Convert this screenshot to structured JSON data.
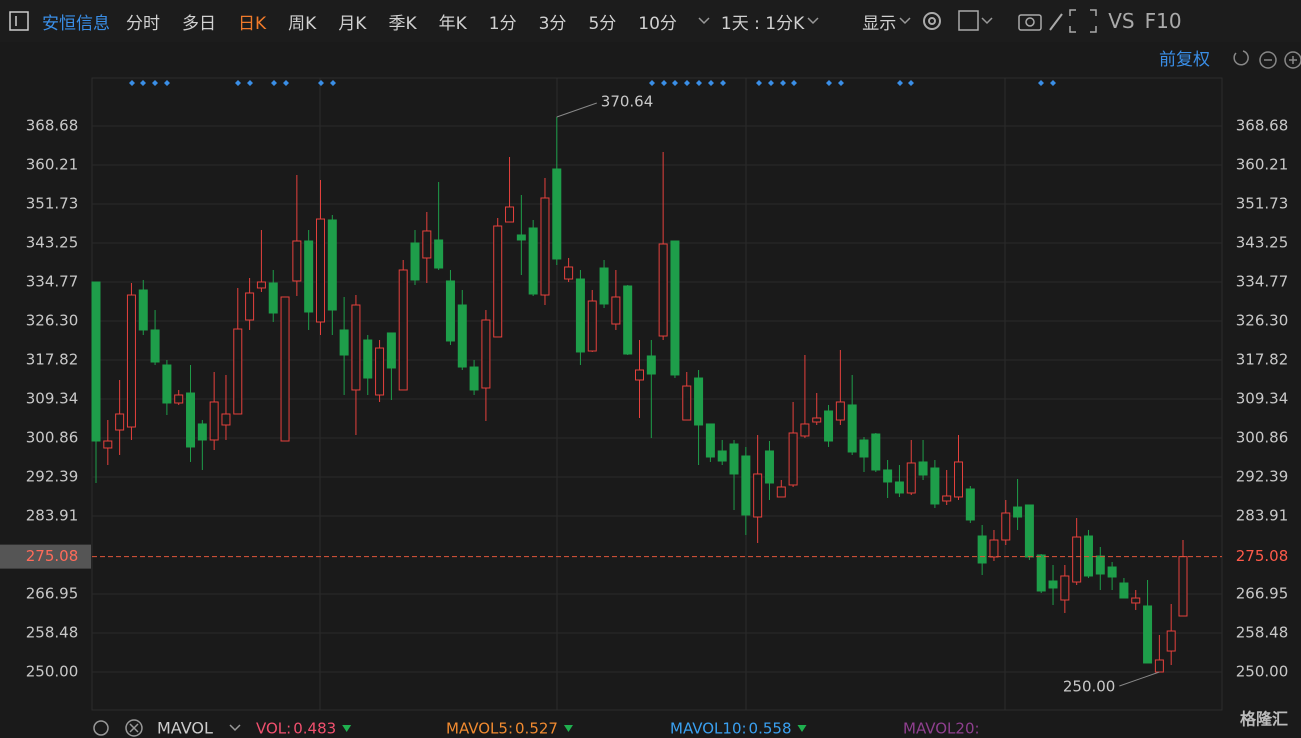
{
  "toolbar": {
    "stock": "安恒信息",
    "periods": [
      "分时",
      "多日",
      "日K",
      "周K",
      "月K",
      "季K",
      "年K",
      "1分",
      "3分",
      "5分",
      "10分"
    ],
    "active": "日K",
    "interval": "1天 : 1分K",
    "display": "显示",
    "tools": [
      "VS",
      "F10"
    ]
  },
  "adjust": "前复权",
  "chart_data": {
    "type": "candlestick",
    "open": [
      334.77,
      298.69,
      302.6,
      303.25,
      333.03,
      324.34,
      316.73,
      308.47,
      310.64,
      303.91,
      300.43,
      303.69,
      306.08,
      326.51,
      333.47,
      334.55,
      300.21,
      334.99,
      343.68,
      326.08,
      348.25,
      324.34,
      311.3,
      322.16,
      310.21,
      323.69,
      311.3,
      343.25,
      339.99,
      343.9,
      334.99,
      329.77,
      316.29,
      311.73,
      322.82,
      347.81,
      344.99,
      346.51,
      331.94,
      359.33,
      335.42,
      335.42,
      319.77,
      337.81,
      325.64,
      333.9,
      313.47,
      318.69,
      323.03,
      343.68,
      304.77,
      313.9,
      303.91,
      298.04,
      299.56,
      296.95,
      283.69,
      298.04,
      288.04,
      290.65,
      301.3,
      304.34,
      306.73,
      304.77,
      308.04,
      300.43,
      301.73,
      293.91,
      291.3,
      288.91,
      295.65,
      294.34,
      287.17,
      288.04,
      289.78,
      279.56,
      275.0,
      278.69,
      285.86,
      286.3,
      275.43,
      269.78,
      265.65,
      269.56,
      279.56,
      275.21,
      272.82,
      269.34,
      265.0,
      264.35,
      250.0,
      254.56,
      262.17
    ],
    "high": [
      334.77,
      304.77,
      313.47,
      334.55,
      335.21,
      328.68,
      317.82,
      311.3,
      316.73,
      304.77,
      315.21,
      314.56,
      333.47,
      335.64,
      346.07,
      337.38,
      331.51,
      358.03,
      346.07,
      356.94,
      349.33,
      331.51,
      331.94,
      323.25,
      322.16,
      323.69,
      339.55,
      346.07,
      349.99,
      356.51,
      337.38,
      333.03,
      317.82,
      328.68,
      348.68,
      361.94,
      353.68,
      348.25,
      357.38,
      370.64,
      339.99,
      337.38,
      333.03,
      339.55,
      337.38,
      334.12,
      322.16,
      322.16,
      363.03,
      343.68,
      315.21,
      315.64,
      303.91,
      300.43,
      300.43,
      298.91,
      301.51,
      300.21,
      291.73,
      308.69,
      318.9,
      310.64,
      308.04,
      319.99,
      314.56,
      301.08,
      301.95,
      296.08,
      294.99,
      300.43,
      300.43,
      296.08,
      293.91,
      301.51,
      290.43,
      281.95,
      280.87,
      287.39,
      291.95,
      286.3,
      275.65,
      273.26,
      273.26,
      283.47,
      280.87,
      277.17,
      273.91,
      270.43,
      267.82,
      270.0,
      258.04,
      264.78,
      278.69
    ],
    "low": [
      291.08,
      294.99,
      297.17,
      300.43,
      323.25,
      316.73,
      305.86,
      308.04,
      295.65,
      293.91,
      298.25,
      300.43,
      306.08,
      324.34,
      332.6,
      326.08,
      300.21,
      331.73,
      324.34,
      323.25,
      323.25,
      310.21,
      301.51,
      310.21,
      308.69,
      309.12,
      311.3,
      334.12,
      334.55,
      337.38,
      321.08,
      315.64,
      310.21,
      304.56,
      322.82,
      347.81,
      336.29,
      331.73,
      329.77,
      338.47,
      334.77,
      316.73,
      319.56,
      329.12,
      324.34,
      318.9,
      305.21,
      300.86,
      322.16,
      313.9,
      304.77,
      294.99,
      295.65,
      294.99,
      285.21,
      279.78,
      278.04,
      287.39,
      288.04,
      290.21,
      300.86,
      303.69,
      298.91,
      303.69,
      297.17,
      293.47,
      293.47,
      287.82,
      288.04,
      288.47,
      291.73,
      285.65,
      286.3,
      287.39,
      282.39,
      271.08,
      274.13,
      277.6,
      280.87,
      274.34,
      267.17,
      264.56,
      262.82,
      268.91,
      270.43,
      267.82,
      267.82,
      266.08,
      263.48,
      251.96,
      250.0,
      251.52,
      262.17
    ],
    "close": [
      300.21,
      300.21,
      306.08,
      331.94,
      324.34,
      317.38,
      308.47,
      310.21,
      298.91,
      300.43,
      308.69,
      306.08,
      324.55,
      332.38,
      334.77,
      328.03,
      331.51,
      343.68,
      328.25,
      348.46,
      328.68,
      318.9,
      329.77,
      313.9,
      320.42,
      316.08,
      337.38,
      335.21,
      345.86,
      337.81,
      321.95,
      316.29,
      311.3,
      326.51,
      346.94,
      351.07,
      343.9,
      332.16,
      353.03,
      339.77,
      338.03,
      319.56,
      330.64,
      329.99,
      331.51,
      319.12,
      315.64,
      314.77,
      343.03,
      314.56,
      312.16,
      303.69,
      296.73,
      295.86,
      293.04,
      284.13,
      293.04,
      291.08,
      290.21,
      301.95,
      303.91,
      305.21,
      300.21,
      308.69,
      297.82,
      296.73,
      293.91,
      291.3,
      288.91,
      295.43,
      292.82,
      286.52,
      288.26,
      295.65,
      283.04,
      273.69,
      278.69,
      284.56,
      283.69,
      275.0,
      267.61,
      268.26,
      270.87,
      279.34,
      270.87,
      271.3,
      270.65,
      266.08,
      266.08,
      251.96,
      252.61,
      258.91,
      275.08
    ],
    "up_color": "#e5413d",
    "down_color": "#1e9e4a",
    "ylim": [
      241.74,
      379.11
    ],
    "yticks": [
      {
        "value": 250,
        "label": "250.00"
      },
      258.48,
      266.95,
      283.91,
      292.39,
      300.86,
      309.34,
      317.82,
      {
        "value": 326.3,
        "label": "326.30"
      },
      334.77,
      343.25,
      351.73,
      360.21,
      368.68
    ],
    "grid": true,
    "last_price": 275.08,
    "high_annotation": 370.64,
    "low_annotation": {
      "value": 250,
      "label": "250.00"
    }
  },
  "volume_panel": {
    "name": "MAVOL",
    "items": [
      {
        "name": "VOL:",
        "value": 0.483,
        "color": "#f0506e"
      },
      {
        "name": "MAVOL5:",
        "value": 0.527,
        "color": "#f08a30"
      },
      {
        "name": "MAVOL10:",
        "value": 0.558,
        "color": "#3aa0f0"
      },
      {
        "name": "MAVOL20:",
        "color": "#8e3f8e"
      }
    ]
  },
  "watermark": "格隆汇"
}
